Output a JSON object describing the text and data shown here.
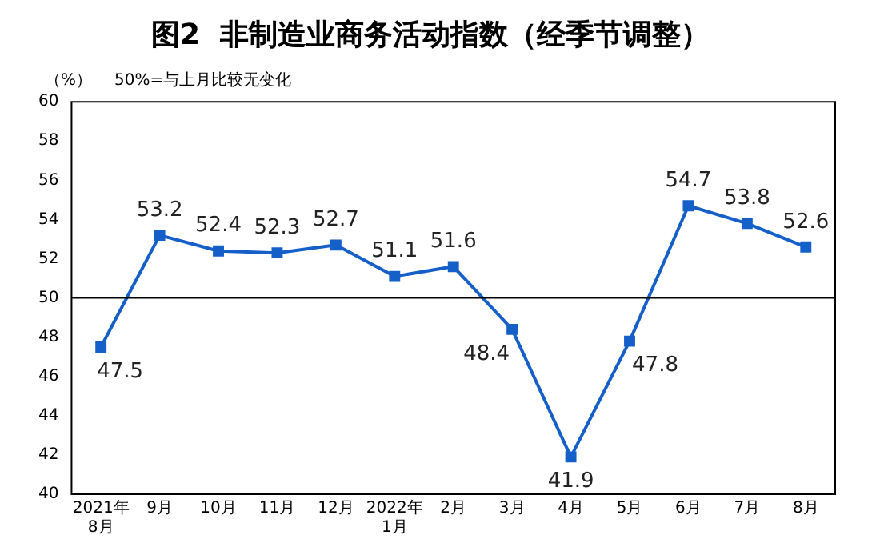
{
  "chart_data": {
    "type": "line",
    "title": "图2  非制造业商务活动指数（经季节调整）",
    "ylabel": "（%）",
    "annotations": [
      "50%=与上月比较无变化"
    ],
    "categories": [
      "2021年\n8月",
      "9月",
      "10月",
      "11月",
      "12月",
      "2022年\n1月",
      "2月",
      "3月",
      "4月",
      "5月",
      "6月",
      "7月",
      "8月"
    ],
    "series": [
      {
        "color": "#1560c8",
        "values": [
          47.5,
          53.2,
          52.4,
          52.3,
          52.7,
          51.1,
          51.6,
          48.4,
          41.9,
          47.8,
          54.7,
          53.8,
          52.6
        ]
      }
    ],
    "ylim": [
      40,
      60
    ],
    "yticks": [
      40,
      42,
      44,
      46,
      48,
      50,
      52,
      54,
      56,
      58,
      60
    ],
    "ref_lines": [
      {
        "axis": "y",
        "value": 50,
        "color": "#000000"
      }
    ],
    "grid": false,
    "legend": false,
    "marker": "square",
    "line_style": "solid",
    "data_labels": true
  }
}
